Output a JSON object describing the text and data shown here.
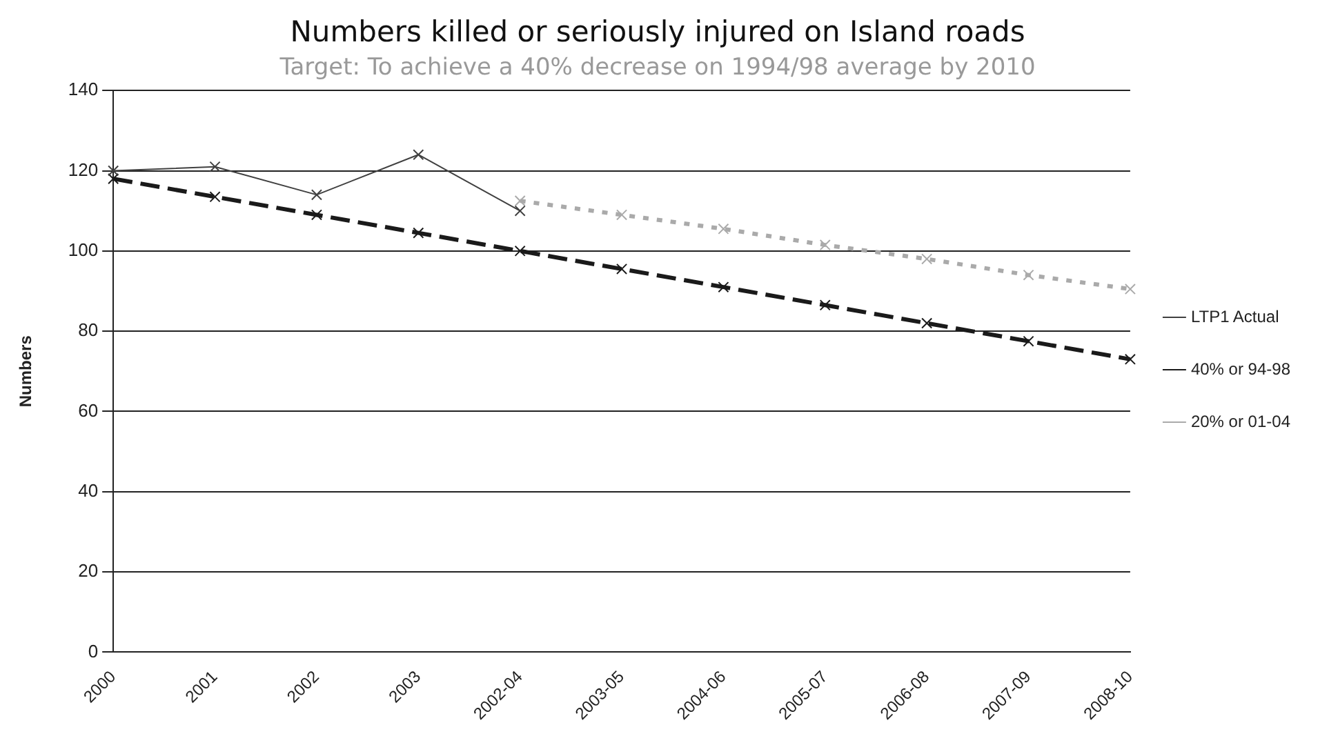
{
  "chart_data": {
    "type": "line",
    "title": "Numbers killed or seriously injured on Island roads",
    "subtitle": "Target: To achieve a 40% decrease on 1994/98 average by 2010",
    "ylabel": "Numbers",
    "categories": [
      "2000",
      "2001",
      "2002",
      "2003",
      "2002-04",
      "2003-05",
      "2004-06",
      "2005-07",
      "2006-08",
      "2007-09",
      "2008-10"
    ],
    "series": [
      {
        "name": "LTP1 Actual",
        "color": "#404040",
        "line_style": "solid",
        "values": [
          120,
          121,
          114,
          124,
          110,
          null,
          null,
          null,
          null,
          null,
          null
        ]
      },
      {
        "name": "40% or 94-98",
        "color": "#1a1a1a",
        "line_style": "dashed",
        "values": [
          118,
          113.5,
          109,
          104.5,
          100,
          95.5,
          91,
          86.5,
          82,
          77.5,
          73
        ]
      },
      {
        "name": "20% or 01-04",
        "color": "#aaaaaa",
        "line_style": "dotted",
        "values": [
          null,
          null,
          null,
          null,
          112.5,
          109,
          105.5,
          101.5,
          98,
          94,
          90.5
        ]
      }
    ],
    "ylim": [
      0,
      140
    ],
    "yticks": [
      0,
      20,
      40,
      60,
      80,
      100,
      120,
      140
    ],
    "grid": "y",
    "legend": "right",
    "marker": "cross"
  }
}
